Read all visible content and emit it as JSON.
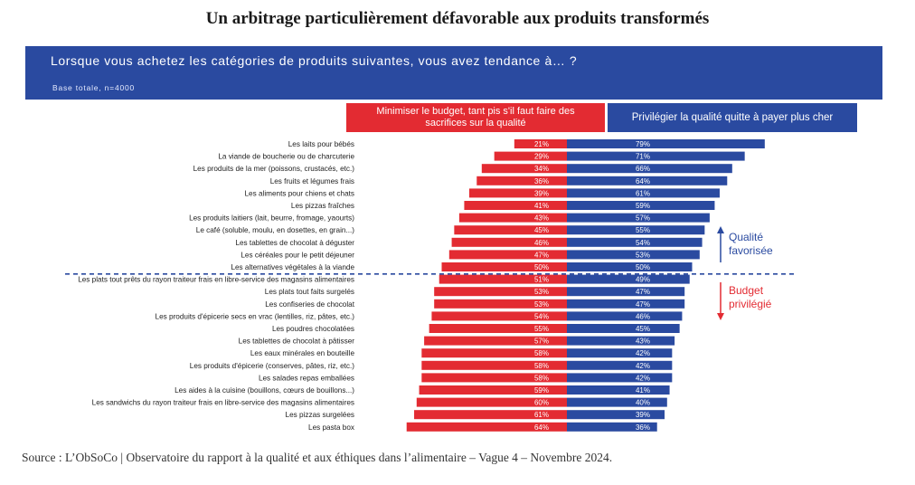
{
  "title": "Un arbitrage particulièrement défavorable aux produits transformés",
  "question": "Lorsque vous achetez les catégories de produits suivantes, vous avez tendance à… ?",
  "base": "Base totale, n=4000",
  "header_left": "Minimiser le budget, tant pis s'il faut faire des sacrifices sur la qualité",
  "header_right": "Privilégier la qualité quitte à payer plus cher",
  "annotation_top": [
    "Qualité",
    "favorisée"
  ],
  "annotation_bottom": [
    "Budget",
    "privilégié"
  ],
  "source": "Source : L’ObSoCo | Observatoire du rapport à la qualité et aux éthiques dans l’alimentaire – Vague 4 – Novembre 2024.",
  "colors": {
    "budget": "#e32b32",
    "quality": "#2a4aa0"
  },
  "chart_data": {
    "type": "bar",
    "orientation": "horizontal-diverging",
    "categories": [
      "Les laits pour bébés",
      "La viande de boucherie ou de charcuterie",
      "Les produits de la mer (poissons, crustacés, etc.)",
      "Les fruits et légumes frais",
      "Les aliments pour chiens et chats",
      "Les pizzas fraîches",
      "Les produits laitiers (lait, beurre, fromage, yaourts)",
      "Le café (soluble, moulu, en dosettes, en grain...)",
      "Les tablettes de chocolat à déguster",
      "Les céréales pour le petit déjeuner",
      "Les alternatives végétales à la viande",
      "Les plats tout prêts du rayon traiteur frais en libre-service des magasins alimentaires",
      "Les plats tout faits surgelés",
      "Les confiseries de chocolat",
      "Les produits d'épicerie secs en vrac (lentilles, riz, pâtes, etc.)",
      "Les poudres chocolatées",
      "Les tablettes de chocolat à pâtisser",
      "Les eaux minérales en bouteille",
      "Les produits d'épicerie (conserves, pâtes, riz, etc.)",
      "Les salades repas emballées",
      "Les aides à la cuisine (bouillons, cœurs de bouillons...)",
      "Les sandwichs du rayon traiteur frais en libre-service des magasins alimentaires",
      "Les pizzas surgelées",
      "Les pasta box"
    ],
    "series": [
      {
        "name": "Minimiser le budget, tant pis s'il faut faire des sacrifices sur la qualité",
        "values": [
          21,
          29,
          34,
          36,
          39,
          41,
          43,
          45,
          46,
          47,
          50,
          51,
          53,
          53,
          54,
          55,
          57,
          58,
          58,
          58,
          59,
          60,
          61,
          64
        ]
      },
      {
        "name": "Privilégier la qualité quitte à payer plus cher",
        "values": [
          79,
          71,
          66,
          64,
          61,
          59,
          57,
          55,
          54,
          53,
          50,
          49,
          47,
          47,
          46,
          45,
          43,
          42,
          42,
          42,
          41,
          40,
          39,
          36
        ]
      }
    ],
    "value_suffix": "%",
    "divider_after_index": 10
  }
}
